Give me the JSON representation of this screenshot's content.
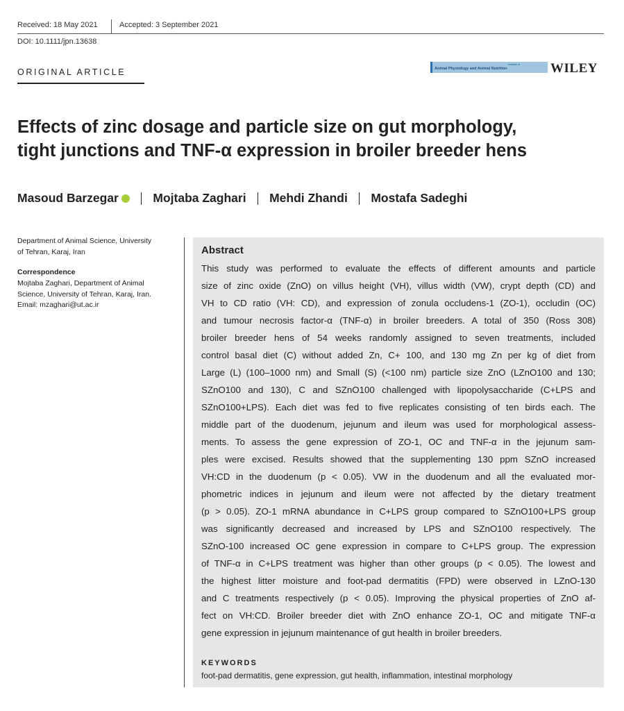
{
  "header": {
    "received": "Received: 18 May 2021",
    "accepted": "Accepted: 3 September 2021",
    "doi": "DOI: 10.1111/jpn.13638",
    "section": "ORIGINAL ARTICLE",
    "journal_pre": "Journal of",
    "journal": "Animal Physiology and Animal Nutrition",
    "publisher": "WILEY"
  },
  "title": [
    "Effects of zinc dosage and particle size on gut morphology,",
    "tight junctions and TNF-α expression in broiler breeder hens"
  ],
  "authors": [
    "Masoud Barzegar",
    "Mojtaba Zaghari",
    "Mehdi Zhandi",
    "Mostafa Sadeghi"
  ],
  "affiliation": [
    "Department of Animal Science, University",
    "of Tehran, Karaj, Iran"
  ],
  "correspondence": {
    "heading": "Correspondence",
    "lines": [
      "Mojtaba Zaghari, Department of Animal",
      "Science, University of Tehran, Karaj, Iran.",
      "Email: mzaghari@ut.ac.ir"
    ]
  },
  "abstract": {
    "heading": "Abstract",
    "lines": [
      "This study was performed to evaluate the effects of different amounts and particle",
      "size of zinc oxide (ZnO) on villus height (VH), villus width (VW), crypt depth (CD) and",
      "VH to CD ratio (VH: CD), and expression of zonula occludens-1 (ZO-1), occludin (OC)",
      "and tumour necrosis factor-α (TNF-α) in broiler breeders. A total of 350 (Ross 308)",
      "broiler breeder hens of 54 weeks randomly assigned to seven treatments, included",
      "control basal diet (C) without added Zn, C+ 100, and 130 mg Zn per kg of diet from",
      "Large (L) (100–1000 nm) and Small (S) (<100 nm) particle size ZnO (LZnO100 and 130;",
      "SZnO100 and 130), C and SZnO100 challenged with lipopolysaccharide (C+LPS and",
      "SZnO100+LPS). Each diet was fed to five replicates consisting of ten birds each. The",
      "middle part of the duodenum, jejunum and ileum was used for morphological assess-",
      "ments. To assess the gene expression of ZO-1, OC and TNF-α in the jejunum sam-",
      "ples were excised. Results showed that the supplementing 130 ppm SZnO increased",
      "VH:CD in the duodenum (p < 0.05). VW in the duodenum and all the evaluated mor-",
      "phometric indices in jejunum and ileum were not affected by the dietary treatment",
      "(p > 0.05). ZO-1 mRNA abundance in C+LPS group compared to SZnO100+LPS group",
      "was significantly decreased and increased by LPS and SZnO100 respectively. The",
      "SZnO-100 increased OC gene expression in compare to C+LPS group. The expression",
      "of TNF-α in C+LPS treatment was higher than other groups (p < 0.05). The lowest and",
      "the highest litter moisture and foot-pad dermatitis (FPD) were observed in LZnO-130",
      "and C treatments respectively (p < 0.05). Improving the physical properties of ZnO af-",
      "fect on VH:CD. Broiler breeder diet with ZnO enhance ZO-1, OC and mitigate TNF-α",
      "gene expression in jejunum maintenance of gut health in broiler breeders."
    ]
  },
  "keywords": {
    "heading": "KEYWORDS",
    "text": "foot-pad dermatitis, gene expression, gut health, inflammation, intestinal morphology"
  }
}
